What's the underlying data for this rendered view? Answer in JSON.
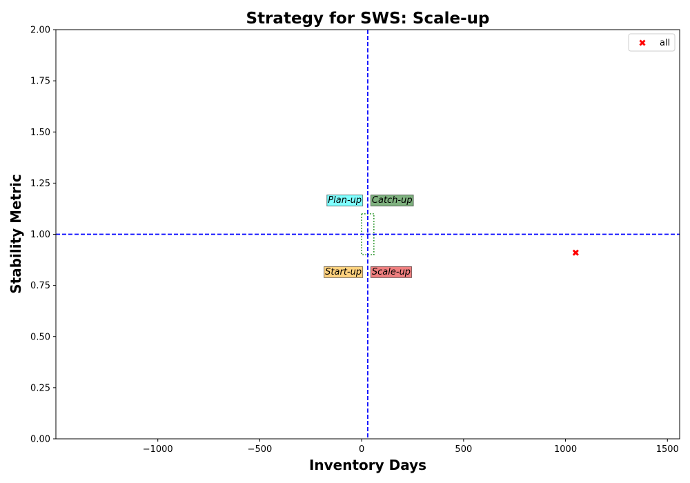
{
  "chart_data": {
    "type": "scatter",
    "title": "Strategy for SWS: Scale-up",
    "xlabel": "Inventory Days",
    "ylabel": "Stability Metric",
    "xlim": [
      -1500,
      1560
    ],
    "ylim": [
      0,
      2
    ],
    "x_ticks": [
      -1000,
      -500,
      0,
      500,
      1000,
      1500
    ],
    "y_ticks": [
      0,
      0.25,
      0.5,
      0.75,
      1.0,
      1.25,
      1.5,
      1.75,
      2.0
    ],
    "x_tick_labels": [
      "−1000",
      "−500",
      "0",
      "500",
      "1000",
      "1500"
    ],
    "y_tick_labels": [
      "0.00",
      "0.25",
      "0.50",
      "0.75",
      "1.00",
      "1.25",
      "1.50",
      "1.75",
      "2.00"
    ],
    "grid": false,
    "legend_position": "top-right",
    "series": [
      {
        "name": "all",
        "marker": "x",
        "color": "#ff0000",
        "points": [
          {
            "x": 1050,
            "y": 0.91
          }
        ]
      }
    ],
    "reference_lines": {
      "vertical_x": 30,
      "horizontal_y": 1.0,
      "color": "#0000ff",
      "style": "dashed"
    },
    "zone_box": {
      "x": [
        0,
        60
      ],
      "y": [
        0.9,
        1.1
      ],
      "color": "#008000",
      "style": "dotted"
    },
    "quadrant_labels": [
      {
        "text": "Plan-up",
        "x": 0,
        "y": 1.17,
        "anchor": "end",
        "color": "#00ffff"
      },
      {
        "text": "Catch-up",
        "x": 50,
        "y": 1.17,
        "anchor": "start",
        "color": "#006400"
      },
      {
        "text": "Start-up",
        "x": 0,
        "y": 0.82,
        "anchor": "end",
        "color": "#ffa500"
      },
      {
        "text": "Scale-up",
        "x": 50,
        "y": 0.82,
        "anchor": "start",
        "color": "#e00000"
      }
    ]
  }
}
